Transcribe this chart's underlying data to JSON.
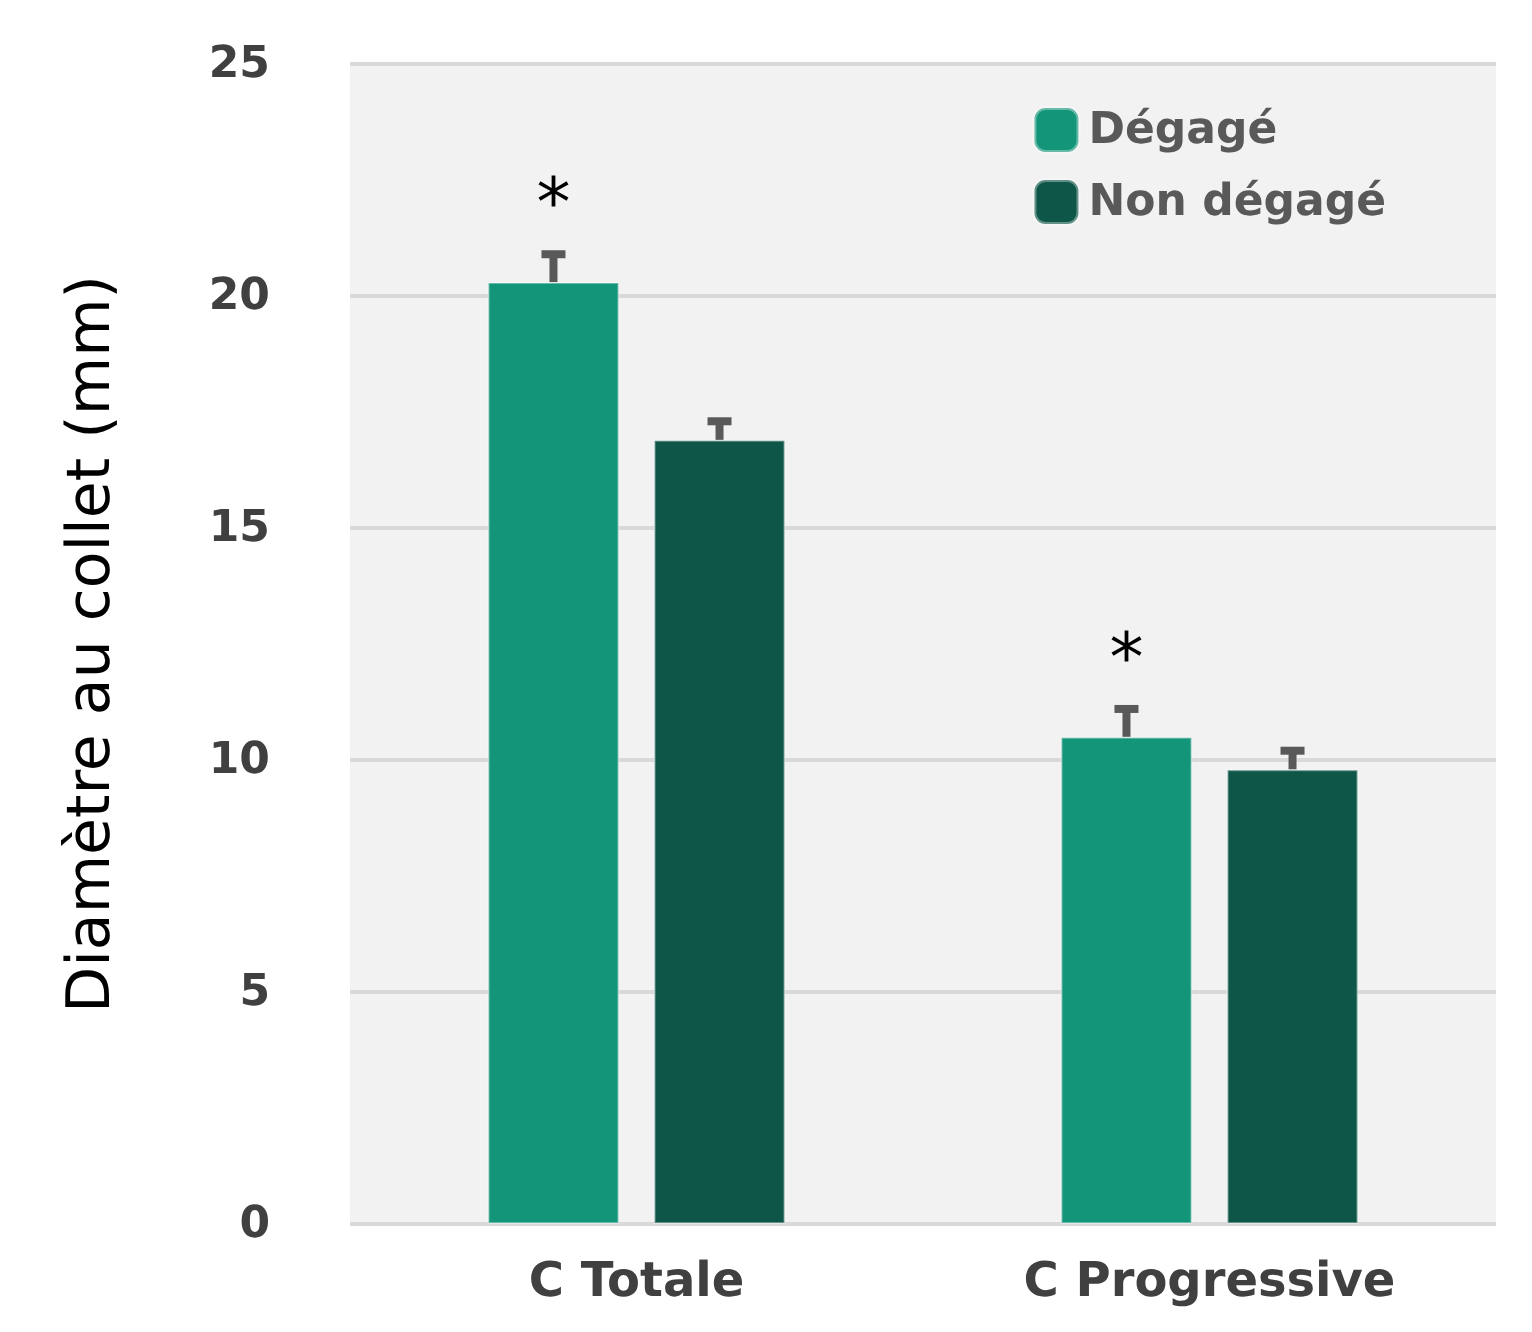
{
  "chart_data": {
    "type": "bar",
    "ylabel": "Diamètre au collet (mm)",
    "categories": [
      "C Totale",
      "C Progressive"
    ],
    "series": [
      {
        "name": "Dégagé",
        "color": "#13957a",
        "values": [
          20.3,
          10.5
        ],
        "errors": [
          [
            20.3,
            20.9
          ],
          [
            10.5,
            11.1
          ]
        ]
      },
      {
        "name": "Non dégagé",
        "color": "#0e5648",
        "values": [
          16.9,
          9.8
        ],
        "errors": [
          [
            16.9,
            17.3
          ],
          [
            9.8,
            10.2
          ]
        ]
      }
    ],
    "ylim": [
      0,
      25
    ],
    "yticks": [
      0,
      5,
      10,
      15,
      20,
      25
    ],
    "grid": "y",
    "legend": "top right",
    "annotations": [
      "*",
      "*"
    ]
  }
}
